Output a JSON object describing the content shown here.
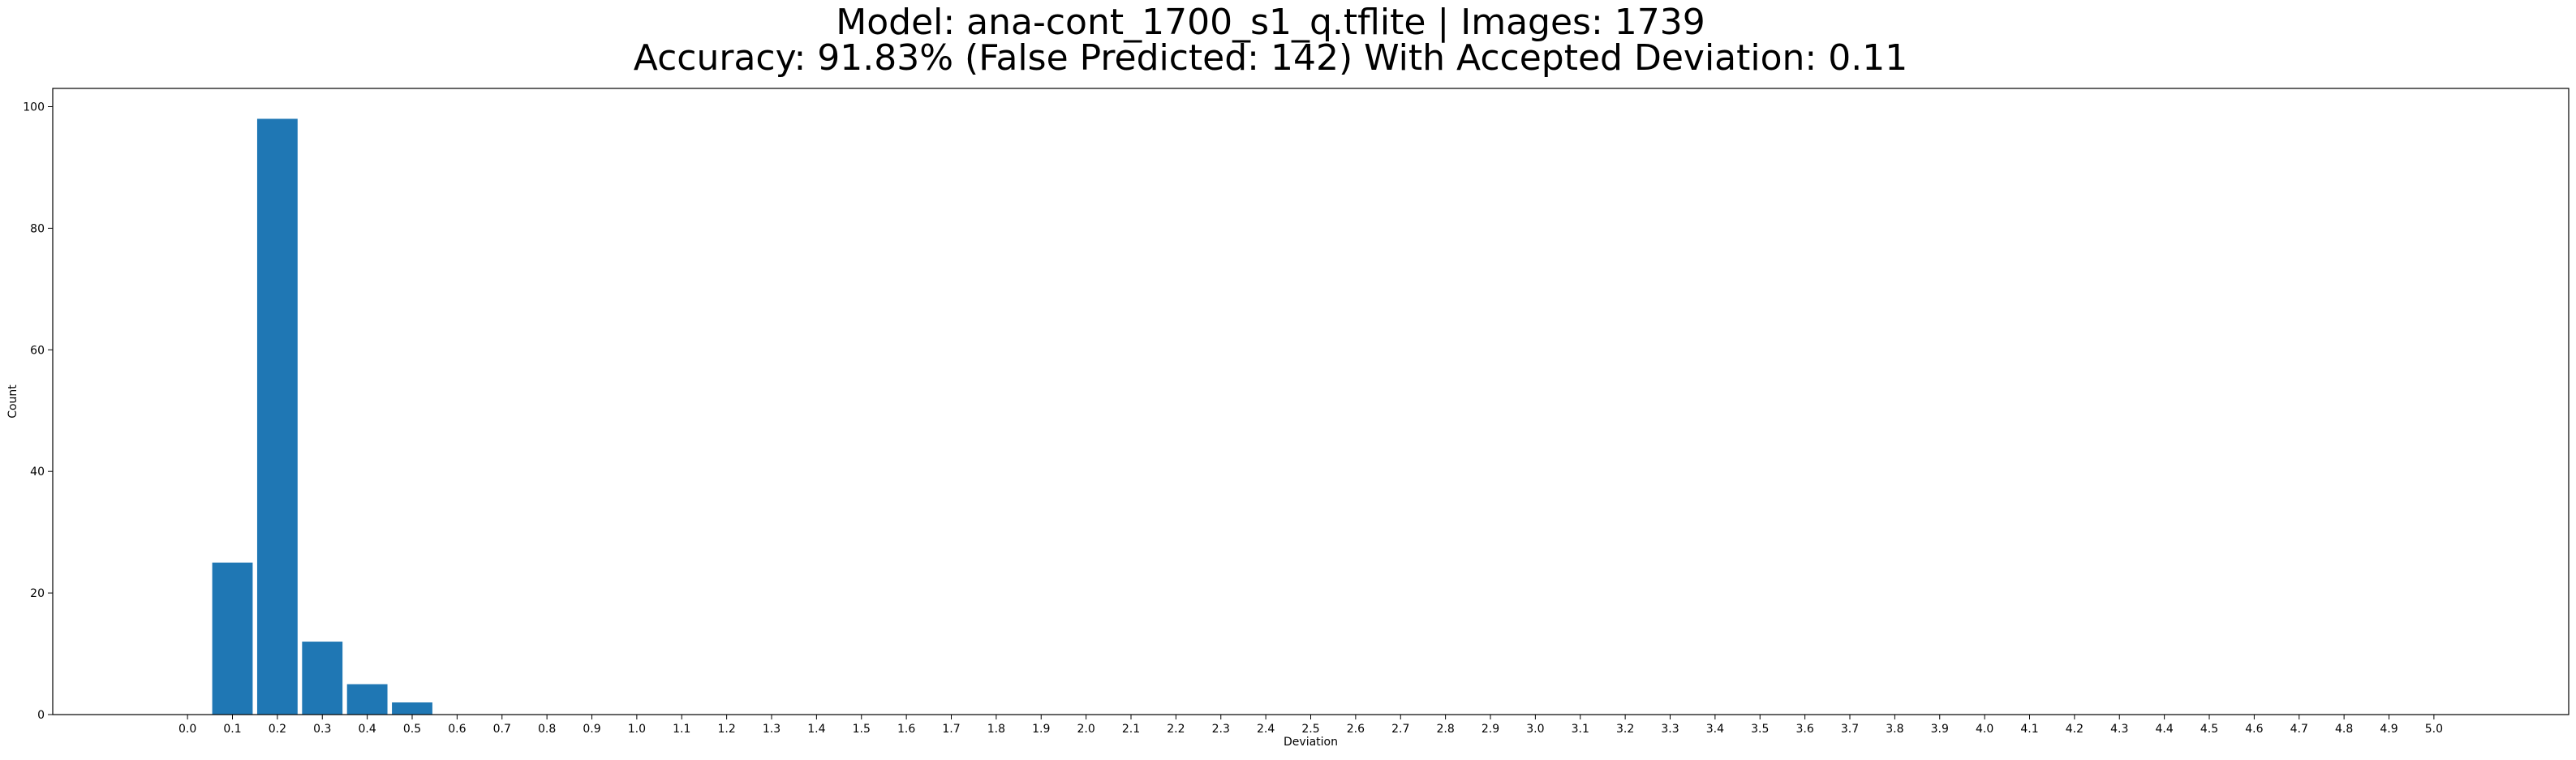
{
  "chart_data": {
    "type": "bar",
    "title_lines": [
      "Model: ana-cont_1700_s1_q.tflite  |  Images: 1739",
      "Accuracy: 91.83% (False Predicted: 142) With Accepted Deviation: 0.11"
    ],
    "xlabel": "Deviation",
    "ylabel": "Count",
    "ylim": [
      0,
      103
    ],
    "xlim": [
      -0.3,
      5.3
    ],
    "bar_width": 0.09,
    "grid": false,
    "legend": "none",
    "bar_color": "#1f77b4",
    "xticks": [
      "0.0",
      "0.1",
      "0.2",
      "0.3",
      "0.4",
      "0.5",
      "0.6",
      "0.7",
      "0.8",
      "0.9",
      "1.0",
      "1.1",
      "1.2",
      "1.3",
      "1.4",
      "1.5",
      "1.6",
      "1.7",
      "1.8",
      "1.9",
      "2.0",
      "2.1",
      "2.2",
      "2.3",
      "2.4",
      "2.5",
      "2.6",
      "2.7",
      "2.8",
      "2.9",
      "3.0",
      "3.1",
      "3.2",
      "3.3",
      "3.4",
      "3.5",
      "3.6",
      "3.7",
      "3.8",
      "3.9",
      "4.0",
      "4.1",
      "4.2",
      "4.3",
      "4.4",
      "4.5",
      "4.6",
      "4.7",
      "4.8",
      "4.9",
      "5.0"
    ],
    "yticks": [
      "0",
      "20",
      "40",
      "60",
      "80",
      "100"
    ],
    "bars": [
      {
        "x": 0.1,
        "value": 25
      },
      {
        "x": 0.2,
        "value": 98
      },
      {
        "x": 0.3,
        "value": 12
      },
      {
        "x": 0.4,
        "value": 5
      },
      {
        "x": 0.5,
        "value": 2
      }
    ]
  }
}
